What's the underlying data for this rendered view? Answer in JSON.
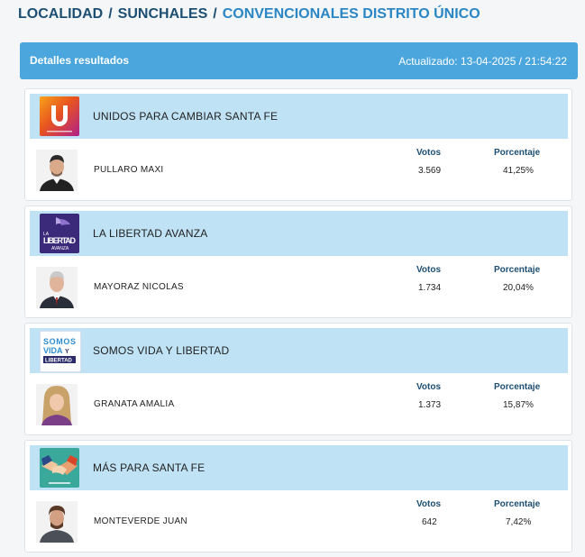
{
  "breadcrumb": {
    "item1": "LOCALIDAD",
    "item2": "SUNCHALES",
    "item3": "CONVENCIONALES DISTRITO ÚNICO",
    "separator": "/"
  },
  "banner": {
    "title": "Detalles resultados",
    "updated": "Actualizado: 13-04-2025 / 21:54:22"
  },
  "labels": {
    "votos": "Votos",
    "porcentaje": "Porcentaje"
  },
  "results": [
    {
      "party": "UNIDOS PARA CAMBIAR SANTA FE",
      "candidate": "PULLARO MAXI",
      "votos": "3.569",
      "porcentaje": "41,25%",
      "logo_letter": "U"
    },
    {
      "party": "LA LIBERTAD AVANZA",
      "candidate": "MAYORAZ NICOLAS",
      "votos": "1.734",
      "porcentaje": "20,04%",
      "logo_text": [
        "LA",
        "LIBERTAD",
        "AVANZA"
      ]
    },
    {
      "party": "SOMOS VIDA Y LIBERTAD",
      "candidate": "GRANATA AMALIA",
      "votos": "1.373",
      "porcentaje": "15,87%",
      "logo_text": [
        "SOMOS",
        "VIDA",
        "Y",
        "LIBERTAD"
      ]
    },
    {
      "party": "MÁS PARA SANTA FE",
      "candidate": "MONTEVERDE JUAN",
      "votos": "642",
      "porcentaje": "7,42%"
    }
  ]
}
